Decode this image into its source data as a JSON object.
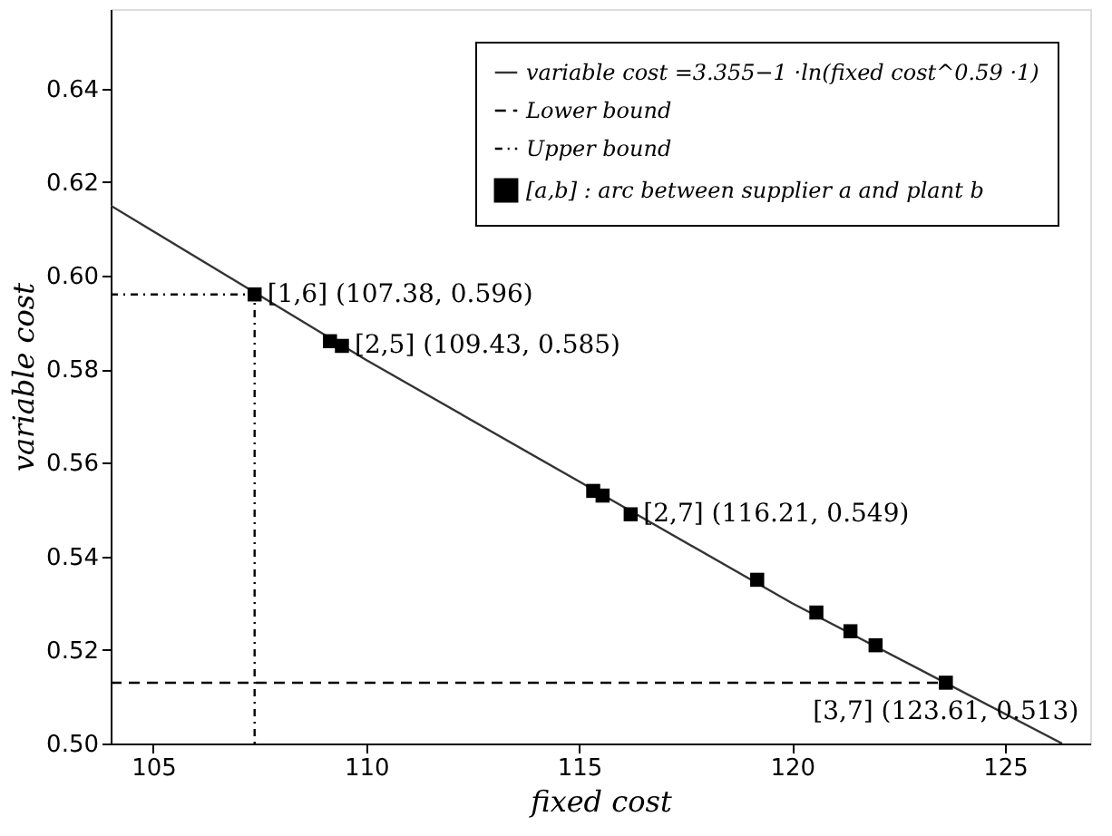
{
  "chart_data": {
    "type": "line",
    "xlabel": "fixed cost",
    "ylabel": "variable cost",
    "xlim": [
      104,
      127
    ],
    "ylim": [
      0.5,
      0.657
    ],
    "xticks": [
      105,
      110,
      115,
      120,
      125
    ],
    "yticks": [
      {
        "value": 0.5,
        "label": "0.50"
      },
      {
        "value": 0.52,
        "label": "0.52"
      },
      {
        "value": 0.54,
        "label": "0.54"
      },
      {
        "value": 0.56,
        "label": "0.56"
      },
      {
        "value": 0.58,
        "label": "0.58"
      },
      {
        "value": 0.6,
        "label": "0.60"
      },
      {
        "value": 0.62,
        "label": "0.62"
      },
      {
        "value": 0.64,
        "label": "0.64"
      }
    ],
    "grid": false,
    "legend": "top right",
    "series": [
      {
        "name": "variable cost =3.355−1 ·ln(fixed cost^0.59 ·1)",
        "color": "#333333",
        "line_style": "solid",
        "x": [
          104,
          110,
          115,
          120,
          126.34
        ],
        "values": [
          0.615,
          0.582,
          0.556,
          0.53,
          0.5
        ]
      },
      {
        "name": "Lower bound",
        "color": "#000000",
        "line_style": "dashed",
        "x": [
          104,
          123.61
        ],
        "values": [
          0.513,
          0.513
        ]
      },
      {
        "name": "Upper bound",
        "color": "#000000",
        "line_style": "dotted",
        "x": [
          104,
          107.38,
          107.38
        ],
        "values": [
          0.596,
          0.596,
          0.5
        ]
      },
      {
        "name": "[a,b] : arc between supplier a and plant b",
        "type": "scatter",
        "color": "#000000",
        "marker": "square",
        "x": [
          107.38,
          109.15,
          109.43,
          115.33,
          115.55,
          116.21,
          119.18,
          120.57,
          121.37,
          121.96,
          123.61
        ],
        "values": [
          0.596,
          0.586,
          0.585,
          0.554,
          0.553,
          0.549,
          0.535,
          0.528,
          0.524,
          0.521,
          0.513
        ]
      }
    ],
    "annotations": [
      {
        "text": "[1,6] (107.38, 0.596)",
        "x": 107.38,
        "y": 0.596
      },
      {
        "text": "[2,5] (109.43, 0.585)",
        "x": 109.43,
        "y": 0.585
      },
      {
        "text": "[2,7] (116.21, 0.549)",
        "x": 116.21,
        "y": 0.549
      },
      {
        "text": "[3,7] (123.61, 0.513)",
        "x": 123.61,
        "y": 0.513
      }
    ]
  }
}
